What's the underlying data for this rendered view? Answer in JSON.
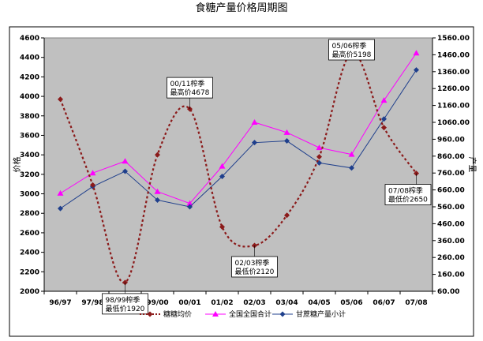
{
  "chart_data": {
    "type": "line",
    "title": "食糖产量价格周期图",
    "title_mark": "↵",
    "xlabel": "",
    "ylabel_left": "价格",
    "ylabel_right": "产量",
    "categories": [
      "96/97",
      "97/98",
      "98/99",
      "99/00",
      "00/01",
      "01/02",
      "02/03",
      "03/04",
      "04/05",
      "05/06",
      "06/07",
      "07/08"
    ],
    "y_left": {
      "min": 2000,
      "max": 4600,
      "step": 200,
      "ticks": [
        "2000",
        "2200",
        "2400",
        "2600",
        "2800",
        "3000",
        "3200",
        "3400",
        "3600",
        "3800",
        "4000",
        "4200",
        "4400",
        "4600"
      ]
    },
    "y_right": {
      "min": 60,
      "max": 1560,
      "step": 100,
      "ticks": [
        "60.00",
        "160.00",
        "260.00",
        "360.00",
        "460.00",
        "560.00",
        "660.00",
        "760.00",
        "860.00",
        "960.00",
        "1060.00",
        "1160.00",
        "1260.00",
        "1360.00",
        "1460.00",
        "1560.00"
      ]
    },
    "grid": false,
    "legend_position": "bottom",
    "series": [
      {
        "name": "糖糖均价",
        "axis": "left",
        "color": "#8b1a1a",
        "style": "dotted-smooth",
        "marker": "diamond",
        "values": [
          3970,
          3090,
          2090,
          3400,
          3870,
          2660,
          2470,
          2780,
          3380,
          4450,
          3680,
          3210
        ]
      },
      {
        "name": "全国全国合计",
        "axis": "right",
        "color": "#ff00ff",
        "style": "solid",
        "marker": "triangle",
        "values": [
          640,
          760,
          830,
          650,
          580,
          800,
          1060,
          1000,
          910,
          870,
          1190,
          1470
        ]
      },
      {
        "name": "甘蔗糖产量小计",
        "axis": "right",
        "color": "#1f3f8c",
        "style": "solid",
        "marker": "diamond",
        "values": [
          550,
          680,
          770,
          600,
          560,
          740,
          940,
          950,
          820,
          790,
          1080,
          1370
        ]
      }
    ],
    "annotations": [
      {
        "cat_index": 2,
        "lines": [
          "98/99榨季",
          "最低价1920"
        ],
        "anchor": "below"
      },
      {
        "cat_index": 4,
        "lines": [
          "00/11榨季",
          "最高价4678"
        ],
        "anchor": "above"
      },
      {
        "cat_index": 6,
        "lines": [
          "02/03榨季",
          "最低价2120"
        ],
        "anchor": "below"
      },
      {
        "cat_index": 9,
        "lines": [
          "05/06榨季",
          "最高价5198"
        ],
        "anchor": "above"
      },
      {
        "cat_index": 11,
        "lines": [
          "07/08榨季",
          "最低价2650"
        ],
        "anchor": "below"
      }
    ]
  },
  "colors": {
    "plot_bg": "#c0c0c0",
    "page_bg": "#ffffff",
    "axis": "#000000"
  }
}
